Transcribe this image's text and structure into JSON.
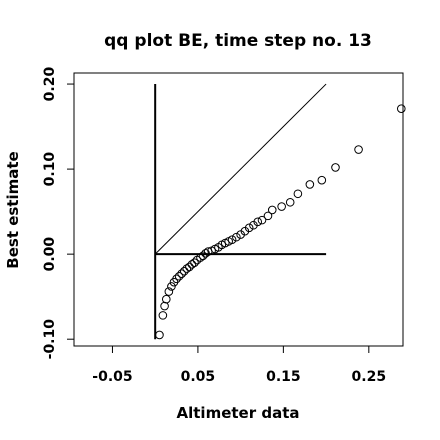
{
  "chart_data": {
    "type": "scatter",
    "title": "qq plot BE, time step no. 13",
    "xlabel": "Altimeter data",
    "ylabel": "Best estimate",
    "xlim": [
      -0.095,
      0.29
    ],
    "ylim": [
      -0.108,
      0.213
    ],
    "x_ticks": [
      -0.05,
      0.05,
      0.15,
      0.25
    ],
    "x_tick_labels": [
      "-0.05",
      "0.05",
      "0.15",
      "0.25"
    ],
    "y_ticks": [
      -0.1,
      0.0,
      0.1,
      0.2
    ],
    "y_tick_labels": [
      "-0.10",
      "0.00",
      "0.10",
      "0.20"
    ],
    "reference_lines": [
      {
        "name": "identity",
        "points": [
          [
            0.0,
            0.0
          ],
          [
            0.2,
            0.2
          ]
        ]
      },
      {
        "name": "vertical-axis",
        "points": [
          [
            0.0,
            -0.1
          ],
          [
            0.0,
            0.2
          ]
        ]
      },
      {
        "name": "horizontal-axis",
        "points": [
          [
            0.0,
            0.0
          ],
          [
            0.2,
            0.0
          ]
        ]
      }
    ],
    "points": [
      [
        0.005,
        -0.095
      ],
      [
        0.009,
        -0.072
      ],
      [
        0.011,
        -0.061
      ],
      [
        0.013,
        -0.053
      ],
      [
        0.016,
        -0.044
      ],
      [
        0.019,
        -0.038
      ],
      [
        0.022,
        -0.033
      ],
      [
        0.025,
        -0.029
      ],
      [
        0.028,
        -0.026
      ],
      [
        0.031,
        -0.023
      ],
      [
        0.034,
        -0.02
      ],
      [
        0.037,
        -0.017
      ],
      [
        0.04,
        -0.015
      ],
      [
        0.043,
        -0.012
      ],
      [
        0.046,
        -0.01
      ],
      [
        0.049,
        -0.007
      ],
      [
        0.053,
        -0.004
      ],
      [
        0.056,
        -0.002
      ],
      [
        0.059,
        0.001
      ],
      [
        0.062,
        0.003
      ],
      [
        0.066,
        0.004
      ],
      [
        0.07,
        0.006
      ],
      [
        0.074,
        0.008
      ],
      [
        0.078,
        0.011
      ],
      [
        0.082,
        0.013
      ],
      [
        0.086,
        0.015
      ],
      [
        0.09,
        0.017
      ],
      [
        0.095,
        0.02
      ],
      [
        0.1,
        0.023
      ],
      [
        0.105,
        0.027
      ],
      [
        0.11,
        0.031
      ],
      [
        0.115,
        0.034
      ],
      [
        0.12,
        0.038
      ],
      [
        0.125,
        0.04
      ],
      [
        0.132,
        0.045
      ],
      [
        0.137,
        0.052
      ],
      [
        0.148,
        0.056
      ],
      [
        0.158,
        0.061
      ],
      [
        0.167,
        0.071
      ],
      [
        0.181,
        0.082
      ],
      [
        0.195,
        0.087
      ],
      [
        0.211,
        0.102
      ],
      [
        0.238,
        0.123
      ],
      [
        0.288,
        0.171
      ]
    ]
  }
}
